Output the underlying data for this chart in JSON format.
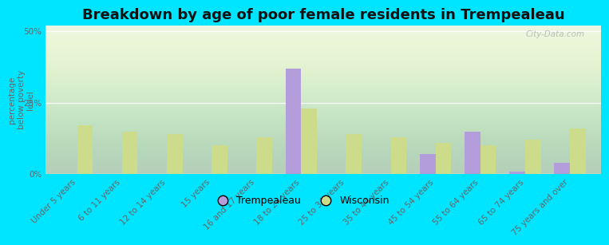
{
  "title": "Breakdown by age of poor female residents in Trempealeau",
  "ylabel": "percentage\nbelow poverty\nlevel",
  "categories": [
    "Under 5 years",
    "6 to 11 years",
    "12 to 14 years",
    "15 years",
    "16 and 17 years",
    "18 to 24 years",
    "25 to 34 years",
    "35 to 44 years",
    "45 to 54 years",
    "55 to 64 years",
    "65 to 74 years",
    "75 years and over"
  ],
  "trempealeau": [
    0,
    0,
    0,
    0,
    0,
    37,
    0,
    0,
    7,
    15,
    1,
    4
  ],
  "wisconsin": [
    17,
    15,
    14,
    10,
    13,
    23,
    14,
    13,
    11,
    10,
    12,
    16
  ],
  "trempealeau_color": "#b39ddb",
  "wisconsin_color": "#cddc8a",
  "outer_bg": "#00e5ff",
  "ylim": [
    0,
    52
  ],
  "ytick_labels": [
    "0%",
    "25%",
    "50%"
  ],
  "ytick_vals": [
    0,
    25,
    50
  ],
  "bar_width": 0.35,
  "title_fontsize": 13,
  "tick_fontsize": 7.5,
  "watermark": "City-Data.com"
}
